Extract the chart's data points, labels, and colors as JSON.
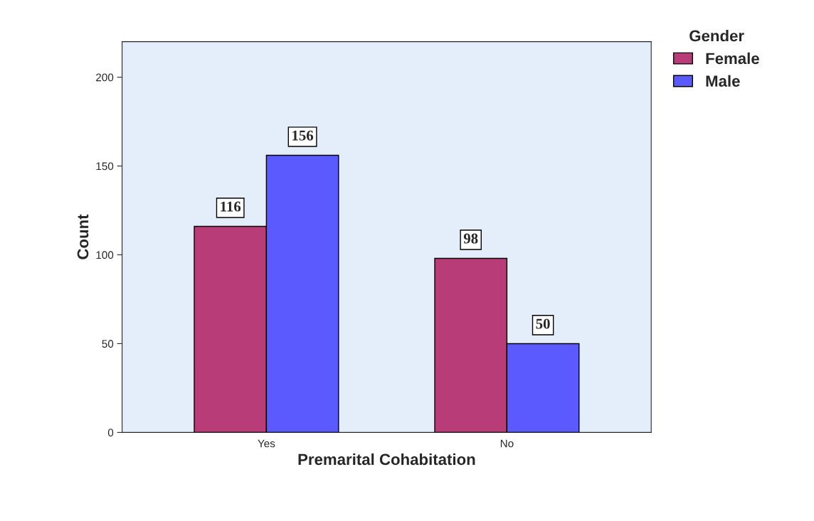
{
  "chart_data": {
    "type": "bar",
    "xlabel": "Premarital Cohabitation",
    "ylabel": "Count",
    "legend_title": "Gender",
    "categories": [
      "Yes",
      "No"
    ],
    "series": [
      {
        "name": "Female",
        "color": "#b83c78",
        "values": [
          116,
          98
        ]
      },
      {
        "name": "Male",
        "color": "#5a5aff",
        "values": [
          156,
          50
        ]
      }
    ],
    "ylim": [
      0,
      220
    ],
    "yticks": [
      0,
      50,
      100,
      150,
      200
    ],
    "grid": false,
    "legend": "top right",
    "data_labels": true
  }
}
